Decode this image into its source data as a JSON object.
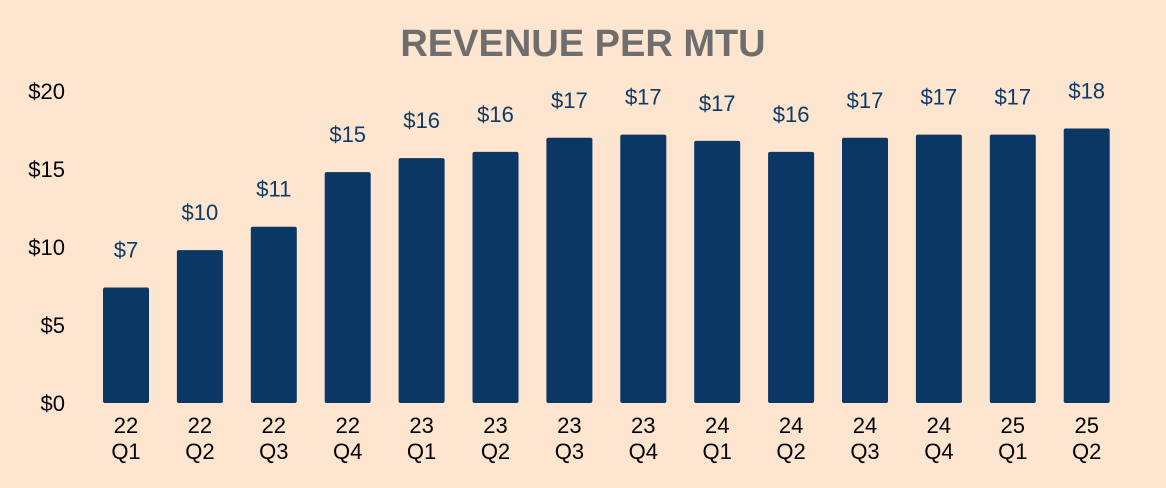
{
  "colors": {
    "background": "#fde5cf",
    "bar": "#0a3763",
    "title": "#6e6e6e",
    "data_label": "#0d3a66",
    "axis_text": "#000000"
  },
  "chart_data": {
    "type": "bar",
    "title": "REVENUE PER MTU",
    "xlabel": "",
    "ylabel": "",
    "ylim": [
      0,
      20
    ],
    "yticks": [
      "$0",
      "$5",
      "$10",
      "$15",
      "$20"
    ],
    "ytick_values": [
      0,
      5,
      10,
      15,
      20
    ],
    "categories": [
      [
        "22",
        "Q1"
      ],
      [
        "22",
        "Q2"
      ],
      [
        "22",
        "Q3"
      ],
      [
        "22",
        "Q4"
      ],
      [
        "23",
        "Q1"
      ],
      [
        "23",
        "Q2"
      ],
      [
        "23",
        "Q3"
      ],
      [
        "23",
        "Q4"
      ],
      [
        "24",
        "Q1"
      ],
      [
        "24",
        "Q2"
      ],
      [
        "24",
        "Q3"
      ],
      [
        "24",
        "Q4"
      ],
      [
        "25",
        "Q1"
      ],
      [
        "25",
        "Q2"
      ]
    ],
    "values": [
      7.4,
      9.8,
      11.3,
      14.8,
      15.7,
      16.1,
      17.0,
      17.2,
      16.8,
      16.1,
      17.0,
      17.2,
      17.2,
      17.6
    ],
    "labels": [
      "$7",
      "$10",
      "$11",
      "$15",
      "$16",
      "$16",
      "$17",
      "$17",
      "$17",
      "$16",
      "$17",
      "$17",
      "$17",
      "$18"
    ]
  }
}
